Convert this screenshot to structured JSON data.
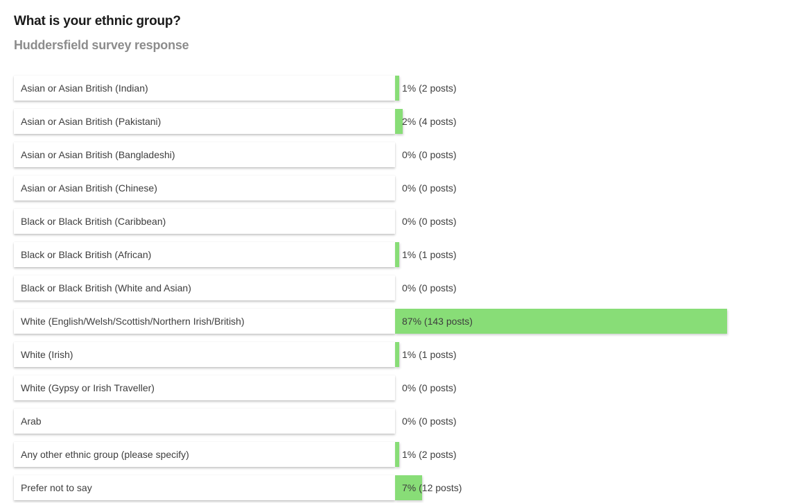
{
  "title": "What is your ethnic group?",
  "subtitle": "Huddersfield survey response",
  "accent_color": "#88dd77",
  "chart_data": {
    "type": "bar",
    "orientation": "horizontal",
    "title": "What is your ethnic group?",
    "subtitle": "Huddersfield survey response",
    "categories": [
      "Asian or Asian British (Indian)",
      "Asian or Asian British (Pakistani)",
      "Asian or Asian British (Bangladeshi)",
      "Asian or Asian British (Chinese)",
      "Black or Black British (Caribbean)",
      "Black or Black British (African)",
      "Black or Black British (White and Asian)",
      "White (English/Welsh/Scottish/Northern Irish/British)",
      "White (Irish)",
      "White (Gypsy or Irish Traveller)",
      "Arab",
      "Any other ethnic group (please specify)",
      "Prefer not to say"
    ],
    "percent": [
      1,
      2,
      0,
      0,
      0,
      1,
      0,
      87,
      1,
      0,
      0,
      1,
      7
    ],
    "posts": [
      2,
      4,
      0,
      0,
      0,
      1,
      0,
      143,
      1,
      0,
      0,
      2,
      12
    ],
    "value_labels": [
      "1% (2 posts)",
      "2% (4 posts)",
      "0% (0 posts)",
      "0% (0 posts)",
      "0% (0 posts)",
      "1% (1 posts)",
      "0% (0 posts)",
      "87% (143 posts)",
      "1% (1 posts)",
      "0% (0 posts)",
      "0% (0 posts)",
      "1% (2 posts)",
      "7% (12 posts)"
    ],
    "xlim": [
      0,
      100
    ]
  }
}
